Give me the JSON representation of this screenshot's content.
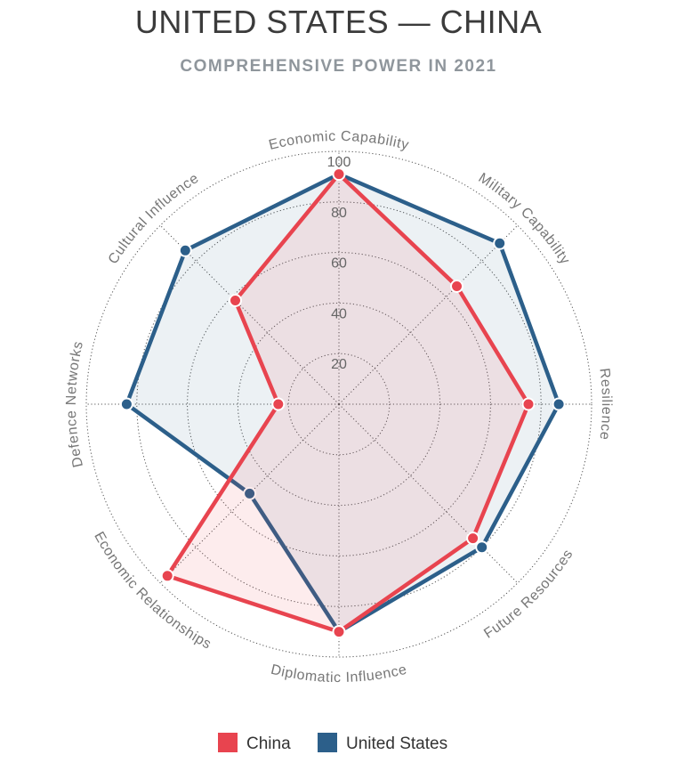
{
  "chart_data": {
    "type": "radar",
    "title": "UNITED STATES — CHINA",
    "subtitle": "COMPREHENSIVE POWER IN 2021",
    "axes": [
      "Economic Capability",
      "Military Capability",
      "Resilience",
      "Future Resources",
      "Diplomatic Influence",
      "Economic Relationships",
      "Defence Networks",
      "Cultural Influence"
    ],
    "range": [
      0,
      100
    ],
    "ticks": [
      20,
      40,
      60,
      80,
      100
    ],
    "series": [
      {
        "name": "United States",
        "color": "#2c5f8a",
        "values": [
          91,
          90,
          87,
          80,
          90,
          50,
          84,
          86
        ]
      },
      {
        "name": "China",
        "color": "#e8444f",
        "values": [
          91,
          66,
          75,
          75,
          90,
          96,
          24,
          58
        ]
      }
    ],
    "legend": {
      "position": "bottom",
      "items": [
        "China",
        "United States"
      ]
    }
  }
}
